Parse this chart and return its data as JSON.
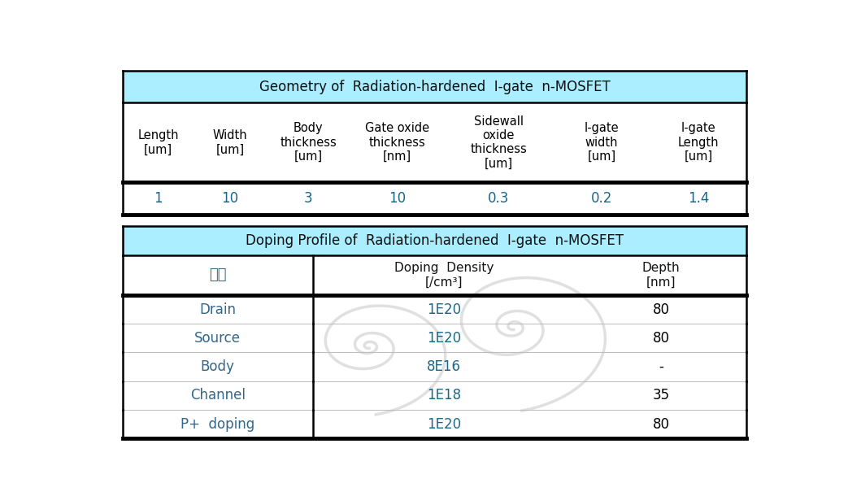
{
  "title1": "Geometry of  Radiation-hardened  I-gate  n-MOSFET",
  "title2": "Doping Profile of  Radiation-hardened  I-gate  n-MOSFET",
  "header_bg": "#aaeeff",
  "header_text_color": "#000000",
  "table1_headers": [
    "Length\n[um]",
    "Width\n[um]",
    "Body\nthickness\n[um]",
    "Gate oxide\nthickness\n[nm]",
    "Sidewall\noxide\nthickness\n[um]",
    "I-gate\nwidth\n[um]",
    "I-gate\nLength\n[um]"
  ],
  "table1_values": [
    "1",
    "10",
    "3",
    "10",
    "0.3",
    "0.2",
    "1.4"
  ],
  "table1_value_color": "#1a6688",
  "table1_header_color": "#000000",
  "table2_col_header0": "항목",
  "table2_col_header1": "Doping  Density\n[/cm³]",
  "table2_col_header2": "Depth\n[nm]",
  "table2_header0_color": "#336688",
  "table2_rows": [
    [
      "Drain",
      "1E20",
      "80"
    ],
    [
      "Source",
      "1E20",
      "80"
    ],
    [
      "Body",
      "8E16",
      "-"
    ],
    [
      "Channel",
      "1E18",
      "35"
    ],
    [
      "P+  doping",
      "1E20",
      "80"
    ]
  ],
  "table2_item_color": "#336688",
  "table2_density_color": "#1a6688",
  "table2_depth_color": "#000000",
  "bg_color": "#ffffff"
}
